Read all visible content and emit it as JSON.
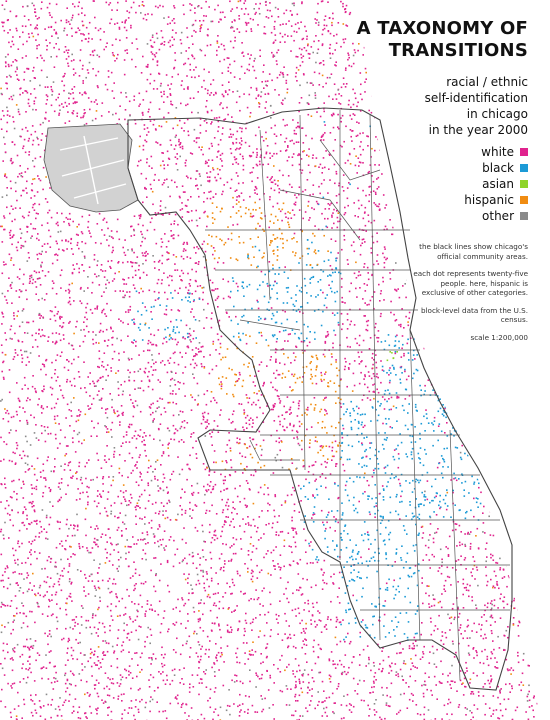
{
  "title_line1": "A TAXONOMY OF",
  "title_line2": "TRANSITIONS",
  "subtitle": [
    "racial / ethnic",
    "self-identification",
    "in chicago",
    "in the year 2000"
  ],
  "legend": [
    {
      "label": "white",
      "color": "#e0238e"
    },
    {
      "label": "black",
      "color": "#1c9ad6"
    },
    {
      "label": "asian",
      "color": "#8fd42a"
    },
    {
      "label": "hispanic",
      "color": "#f08c12"
    },
    {
      "label": "other",
      "color": "#8a8a8a"
    }
  ],
  "notes": [
    "the black lines show chicago's official community areas.",
    "each dot represents twenty-five people. here, hispanic is exclusive of other categories.",
    "block-level data from the U.S. census.",
    "scale 1:200,000"
  ]
}
